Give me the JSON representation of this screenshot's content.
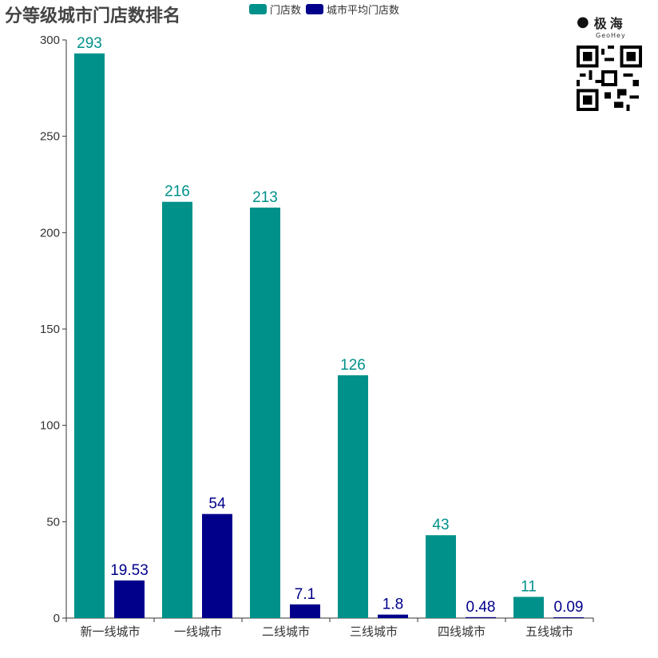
{
  "title": "分等级城市门店数排名",
  "logo": {
    "icon": "dog-icon",
    "name": "极海",
    "sub": "GeoHey"
  },
  "colors": {
    "store_count": "#00918A",
    "avg_per_city": "#00008B"
  },
  "chart_data": {
    "type": "bar",
    "title": "分等级城市门店数排名",
    "categories": [
      "新一线城市",
      "一线城市",
      "二线城市",
      "三线城市",
      "四线城市",
      "五线城市"
    ],
    "series": [
      {
        "name": "门店数",
        "values": [
          293,
          216,
          213,
          126,
          43,
          11
        ],
        "labels": [
          "293",
          "216",
          "213",
          "126",
          "43",
          "11"
        ]
      },
      {
        "name": "城市平均门店数",
        "values": [
          19.53,
          54,
          7.1,
          1.8,
          0.48,
          0.09
        ],
        "labels": [
          "19.53",
          "54",
          "7.1",
          "1.8",
          "0.48",
          "0.09"
        ]
      }
    ],
    "yticks": [
      "0",
      "50",
      "100",
      "150",
      "200",
      "250",
      "300"
    ],
    "ylim": [
      0,
      300
    ],
    "xlabel": "",
    "ylabel": "",
    "grid": false,
    "legend_position": "top"
  }
}
